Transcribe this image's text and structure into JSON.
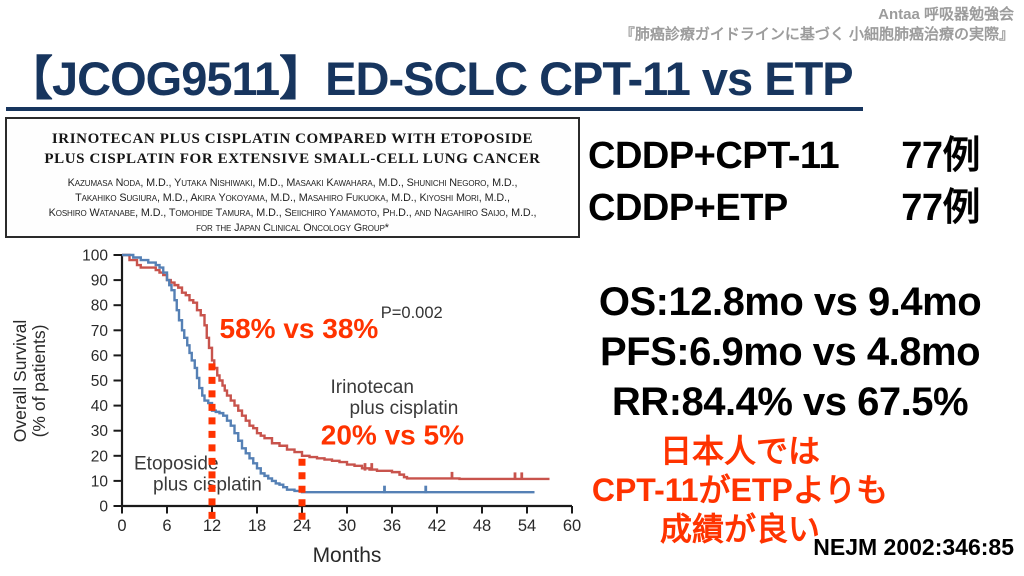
{
  "header": {
    "org_line": "Antaa 呼吸器勉強会",
    "session_line": "『肺癌診療ガイドラインに基づく 小細胞肺癌治療の実際』"
  },
  "title": "【JCOG9511】ED-SCLC CPT-11 vs ETP",
  "paper": {
    "title_line1": "IRINOTECAN PLUS CISPLATIN COMPARED WITH ETOPOSIDE",
    "title_line2": "PLUS CISPLATIN FOR EXTENSIVE SMALL-CELL LUNG CANCER",
    "authors_line1": "Kazumasa Noda, M.D., Yutaka Nishiwaki, M.D., Masaaki Kawahara, M.D., Shunichi Negoro, M.D.,",
    "authors_line2": "Takahiko Sugiura, M.D., Akira Yokoyama, M.D., Masahiro Fukuoka, M.D., Kiyoshi Mori, M.D.,",
    "authors_line3": "Koshiro Watanabe, M.D., Tomohide Tamura, M.D., Seiichiro Yamamoto, Ph.D., and Nagahiro Saijo, M.D.,",
    "authors_line4": "for the Japan Clinical Oncology Group*"
  },
  "arms": {
    "rows": [
      {
        "label": "CDDP+CPT-11",
        "value": "77例"
      },
      {
        "label": "CDDP+ETP",
        "value": "77例"
      }
    ]
  },
  "outcomes": {
    "os": "OS:12.8mo vs 9.4mo",
    "pfs": "PFS:6.9mo vs 4.8mo",
    "rr": "RR:84.4% vs 67.5%"
  },
  "conclusion": {
    "line1": "日本人では",
    "line2": "CPT-11がETPよりも",
    "line3": "成績が良い",
    "color": "#ff3300"
  },
  "citation": "NEJM 2002:346:85",
  "colors": {
    "title_navy": "#17355e",
    "accent_red": "#ff3300",
    "irinotecan_curve": "#c8534c",
    "etoposide_curve": "#5580b5",
    "header_gray": "#9c9c9c"
  },
  "chart_data": {
    "type": "line",
    "subtype": "kaplan_meier_step",
    "title": "",
    "xlabel": "Months",
    "ylabel_lines": [
      "Overall Survival",
      "(% of patients)"
    ],
    "xlim": [
      0,
      60
    ],
    "ylim": [
      0,
      100
    ],
    "xticks": [
      0,
      6,
      12,
      18,
      24,
      30,
      36,
      42,
      48,
      54,
      60
    ],
    "yticks": [
      0,
      10,
      20,
      30,
      40,
      50,
      60,
      70,
      80,
      90,
      100
    ],
    "grid": false,
    "legend_position": "in-plot-labels",
    "p_value": {
      "text": "P=0.002",
      "x_month": 34.5,
      "y_pct": 75
    },
    "annotations": [
      {
        "text": "58% vs 38%",
        "x_month": 13,
        "y_pct": 67,
        "color": "#ff3300"
      },
      {
        "text": "20% vs 5%",
        "x_month": 26.5,
        "y_pct": 24.5,
        "color": "#ff3300"
      }
    ],
    "reference_lines": [
      {
        "x_month": 12,
        "from_pct": 58,
        "color": "#ff3300"
      },
      {
        "x_month": 24,
        "from_pct": 20,
        "color": "#ff3300"
      }
    ],
    "series": [
      {
        "name": "Irinotecan plus cisplatin",
        "color": "#c8534c",
        "label_lines": [
          "Irinotecan",
          "plus cisplatin"
        ],
        "label_pos": {
          "x_month": 27.8,
          "y_pct": 45
        },
        "points": [
          [
            0,
            100
          ],
          [
            1,
            98
          ],
          [
            2,
            96
          ],
          [
            2.5,
            95
          ],
          [
            4,
            95
          ],
          [
            4.5,
            94
          ],
          [
            5,
            93
          ],
          [
            5.5,
            92
          ],
          [
            6,
            90
          ],
          [
            6.5,
            89
          ],
          [
            7,
            88
          ],
          [
            7.5,
            87
          ],
          [
            8,
            85
          ],
          [
            8.5,
            84
          ],
          [
            9,
            82
          ],
          [
            9.5,
            81
          ],
          [
            10,
            78
          ],
          [
            10.5,
            76
          ],
          [
            11,
            72
          ],
          [
            11.3,
            67
          ],
          [
            11.6,
            63
          ],
          [
            12,
            58
          ],
          [
            12.3,
            55
          ],
          [
            12.7,
            52
          ],
          [
            13,
            50
          ],
          [
            13.4,
            48
          ],
          [
            13.7,
            46
          ],
          [
            14,
            44
          ],
          [
            14.5,
            42
          ],
          [
            15,
            40
          ],
          [
            15.5,
            38
          ],
          [
            16,
            36
          ],
          [
            16.5,
            34
          ],
          [
            17,
            32
          ],
          [
            17.5,
            31
          ],
          [
            18,
            29
          ],
          [
            18.5,
            28
          ],
          [
            19,
            27
          ],
          [
            20,
            25
          ],
          [
            21,
            24
          ],
          [
            22,
            22.5
          ],
          [
            23,
            21.5
          ],
          [
            24,
            20
          ],
          [
            25,
            19.5
          ],
          [
            26,
            19
          ],
          [
            27,
            18.5
          ],
          [
            28,
            18
          ],
          [
            29,
            17.5
          ],
          [
            30,
            16.5
          ],
          [
            31,
            16
          ],
          [
            32,
            15
          ],
          [
            33,
            14.5
          ],
          [
            34,
            14
          ],
          [
            36,
            13.5
          ],
          [
            37,
            12.5
          ],
          [
            37.6,
            11.5
          ],
          [
            38,
            11
          ],
          [
            44.5,
            11
          ],
          [
            45,
            10.8
          ],
          [
            57,
            10.8
          ]
        ],
        "censor_marks": [
          [
            32.4,
            14.5
          ],
          [
            33.3,
            14.5
          ],
          [
            44,
            11
          ],
          [
            52.4,
            10.8
          ],
          [
            53.3,
            10.8
          ]
        ]
      },
      {
        "name": "Etoposide plus cisplatin",
        "color": "#5580b5",
        "label_lines": [
          "Etoposide",
          "plus cisplatin"
        ],
        "label_pos": {
          "x_month": 1.6,
          "y_pct": 14.5
        },
        "points": [
          [
            0,
            100
          ],
          [
            1.5,
            99
          ],
          [
            2.5,
            98
          ],
          [
            3.5,
            97
          ],
          [
            4.5,
            96
          ],
          [
            5,
            95
          ],
          [
            5.5,
            93
          ],
          [
            6,
            90
          ],
          [
            6.3,
            88
          ],
          [
            6.6,
            86
          ],
          [
            7,
            82
          ],
          [
            7.3,
            78
          ],
          [
            7.6,
            74
          ],
          [
            8,
            70
          ],
          [
            8.3,
            67
          ],
          [
            8.7,
            64
          ],
          [
            9,
            61
          ],
          [
            9.3,
            58
          ],
          [
            9.7,
            55
          ],
          [
            10,
            51
          ],
          [
            10.3,
            47
          ],
          [
            10.7,
            44
          ],
          [
            11,
            42
          ],
          [
            11.5,
            41
          ],
          [
            12,
            38
          ],
          [
            12.5,
            37.5
          ],
          [
            13,
            37
          ],
          [
            13.5,
            36
          ],
          [
            14,
            34
          ],
          [
            14.5,
            32
          ],
          [
            15,
            29
          ],
          [
            15.5,
            26
          ],
          [
            16,
            23
          ],
          [
            16.5,
            21
          ],
          [
            17,
            19
          ],
          [
            17.5,
            17
          ],
          [
            18,
            15
          ],
          [
            18.5,
            13
          ],
          [
            19,
            12
          ],
          [
            19.5,
            11
          ],
          [
            20,
            10
          ],
          [
            20.5,
            9
          ],
          [
            21,
            8.5
          ],
          [
            21.5,
            7.5
          ],
          [
            22,
            6.5
          ],
          [
            23,
            6
          ],
          [
            24,
            5.5
          ],
          [
            55,
            5.5
          ]
        ],
        "censor_marks": [
          [
            35,
            5.5
          ],
          [
            40.5,
            5.5
          ]
        ]
      }
    ]
  }
}
